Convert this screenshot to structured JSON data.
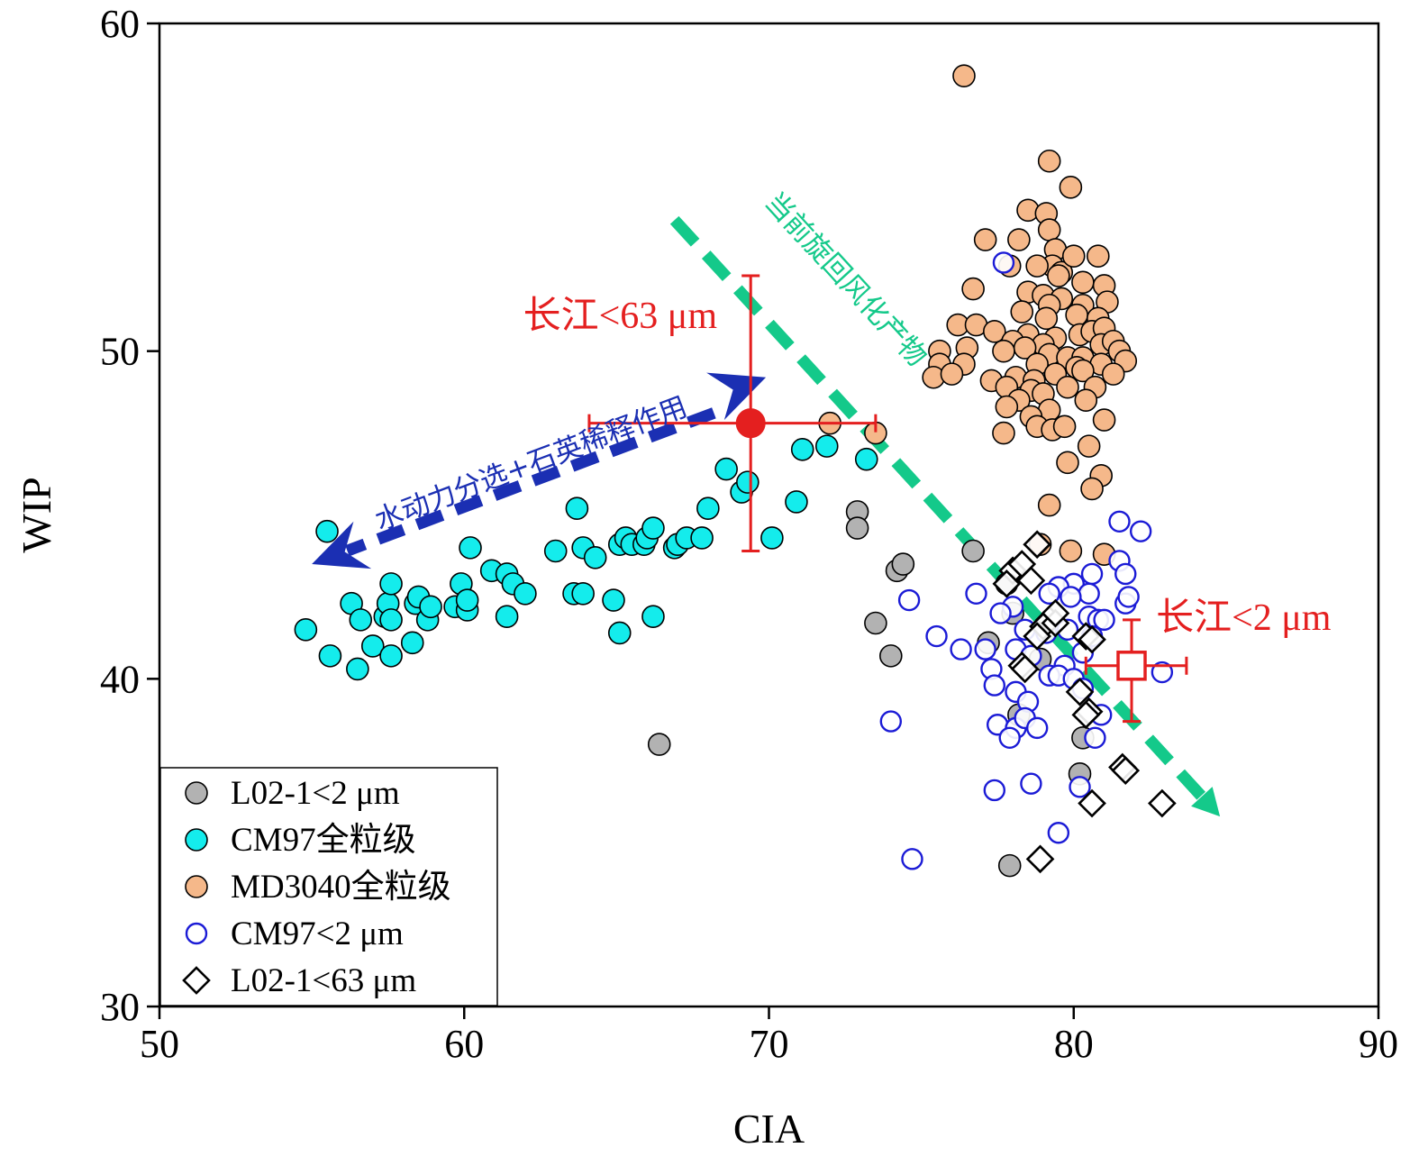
{
  "chart_data": {
    "type": "scatter",
    "xlabel": "CIA",
    "ylabel": "WIP",
    "xlim": [
      50,
      90
    ],
    "ylim": [
      30,
      60
    ],
    "xticks": [
      "50",
      "60",
      "70",
      "80",
      "90"
    ],
    "yticks": [
      "30",
      "40",
      "50",
      "60"
    ],
    "grid": false,
    "legend_position": "bottom-left",
    "series": [
      {
        "name": "L02-1<2 μm",
        "marker": "filled-circle",
        "color": "#b2b2b2",
        "points": [
          [
            66.4,
            38
          ],
          [
            72.9,
            45.1
          ],
          [
            72.9,
            44.6
          ],
          [
            73.5,
            41.7
          ],
          [
            74,
            40.7
          ],
          [
            74.2,
            43.3
          ],
          [
            74.4,
            43.5
          ],
          [
            76.7,
            43.9
          ],
          [
            77.2,
            41.1
          ],
          [
            77.8,
            42.9
          ],
          [
            78.0,
            42.0
          ],
          [
            78.2,
            38.9
          ],
          [
            78.9,
            40.6
          ],
          [
            80.3,
            38.2
          ],
          [
            80.2,
            37.1
          ],
          [
            77.9,
            34.3
          ]
        ]
      },
      {
        "name": "CM97全粒级",
        "marker": "filled-circle",
        "color": "#14ecec",
        "points": [
          [
            54.8,
            41.5
          ],
          [
            55.5,
            44.5
          ],
          [
            55.6,
            40.7
          ],
          [
            56.3,
            42.3
          ],
          [
            56.5,
            40.3
          ],
          [
            56.6,
            41.8
          ],
          [
            57.0,
            41.0
          ],
          [
            57.4,
            41.9
          ],
          [
            57.5,
            42.3
          ],
          [
            57.6,
            40.7
          ],
          [
            57.6,
            41.8
          ],
          [
            57.6,
            42.9
          ],
          [
            58.3,
            41.1
          ],
          [
            58.4,
            42.3
          ],
          [
            58.5,
            42.5
          ],
          [
            58.8,
            41.8
          ],
          [
            58.9,
            42.2
          ],
          [
            59.7,
            42.2
          ],
          [
            59.9,
            42.9
          ],
          [
            60.1,
            42.1
          ],
          [
            60.1,
            42.4
          ],
          [
            60.2,
            44
          ],
          [
            60.9,
            43.3
          ],
          [
            61.4,
            43.2
          ],
          [
            61.4,
            41.9
          ],
          [
            61.6,
            42.9
          ],
          [
            62.0,
            42.6
          ],
          [
            63.0,
            43.9
          ],
          [
            63.6,
            42.6
          ],
          [
            63.7,
            45.2
          ],
          [
            63.9,
            44
          ],
          [
            63.9,
            42.6
          ],
          [
            64.3,
            43.7
          ],
          [
            64.9,
            42.4
          ],
          [
            65.1,
            41.4
          ],
          [
            65.1,
            44.1
          ],
          [
            65.3,
            44.3
          ],
          [
            65.5,
            44.1
          ],
          [
            65.9,
            44.1
          ],
          [
            66.0,
            44.3
          ],
          [
            66.2,
            44.6
          ],
          [
            66.2,
            41.9
          ],
          [
            66.9,
            44.0
          ],
          [
            67.0,
            44.1
          ],
          [
            67.3,
            44.3
          ],
          [
            67.8,
            44.3
          ],
          [
            68.0,
            45.2
          ],
          [
            68.6,
            46.4
          ],
          [
            69.1,
            45.7
          ],
          [
            69.3,
            46.0
          ],
          [
            70.1,
            44.3
          ],
          [
            70.9,
            45.4
          ],
          [
            71.1,
            47.0
          ],
          [
            71.9,
            47.1
          ],
          [
            73.2,
            46.7
          ]
        ]
      },
      {
        "name": "MD3040全粒级",
        "marker": "filled-circle",
        "color": "#f5b88a",
        "points": [
          [
            72.0,
            47.8
          ],
          [
            73.5,
            47.5
          ],
          [
            76.4,
            58.4
          ],
          [
            79.2,
            55.8
          ],
          [
            79.9,
            55.0
          ],
          [
            78.5,
            54.3
          ],
          [
            79.1,
            54.2
          ],
          [
            79.2,
            53.7
          ],
          [
            79.4,
            53.1
          ],
          [
            77.1,
            53.4
          ],
          [
            78.2,
            53.4
          ],
          [
            79.3,
            52.6
          ],
          [
            79.6,
            52.4
          ],
          [
            80.0,
            52.9
          ],
          [
            80.8,
            52.9
          ],
          [
            77.9,
            52.6
          ],
          [
            78.8,
            52.6
          ],
          [
            79.5,
            52.3
          ],
          [
            80.3,
            52.1
          ],
          [
            81.0,
            52.0
          ],
          [
            76.7,
            51.9
          ],
          [
            78.5,
            51.8
          ],
          [
            79.0,
            51.7
          ],
          [
            79.6,
            51.6
          ],
          [
            80.3,
            51.4
          ],
          [
            81.1,
            51.5
          ],
          [
            79.2,
            51.4
          ],
          [
            78.3,
            51.2
          ],
          [
            80.1,
            51.1
          ],
          [
            80.8,
            51.0
          ],
          [
            79.1,
            51.0
          ],
          [
            76.2,
            50.8
          ],
          [
            76.8,
            50.8
          ],
          [
            77.4,
            50.6
          ],
          [
            78.5,
            50.5
          ],
          [
            78.0,
            50.3
          ],
          [
            79.4,
            50.4
          ],
          [
            80.2,
            50.5
          ],
          [
            80.6,
            50.6
          ],
          [
            81.0,
            50.7
          ],
          [
            79.0,
            50.2
          ],
          [
            78.4,
            50.1
          ],
          [
            80.9,
            50.2
          ],
          [
            81.3,
            50.3
          ],
          [
            75.6,
            50.0
          ],
          [
            76.5,
            50.1
          ],
          [
            77.7,
            50.0
          ],
          [
            79.2,
            49.9
          ],
          [
            79.8,
            49.8
          ],
          [
            80.3,
            49.8
          ],
          [
            81.5,
            50.0
          ],
          [
            75.6,
            49.6
          ],
          [
            76.4,
            49.6
          ],
          [
            78.8,
            49.6
          ],
          [
            80.1,
            49.5
          ],
          [
            80.9,
            49.6
          ],
          [
            81.7,
            49.7
          ],
          [
            75.4,
            49.2
          ],
          [
            76.0,
            49.3
          ],
          [
            77.3,
            49.1
          ],
          [
            78.1,
            49.2
          ],
          [
            78.7,
            49.1
          ],
          [
            79.4,
            49.3
          ],
          [
            80.3,
            49.4
          ],
          [
            81.3,
            49.3
          ],
          [
            77.8,
            48.9
          ],
          [
            78.6,
            48.8
          ],
          [
            79.0,
            48.7
          ],
          [
            79.8,
            48.9
          ],
          [
            80.7,
            48.9
          ],
          [
            78.2,
            48.5
          ],
          [
            79.2,
            48.2
          ],
          [
            80.4,
            48.5
          ],
          [
            77.8,
            48.3
          ],
          [
            78.6,
            48.0
          ],
          [
            81.0,
            47.9
          ],
          [
            78.8,
            47.7
          ],
          [
            79.3,
            47.6
          ],
          [
            77.7,
            47.5
          ],
          [
            79.7,
            47.7
          ],
          [
            80.5,
            47.1
          ],
          [
            80.9,
            46.2
          ],
          [
            79.8,
            46.6
          ],
          [
            80.6,
            45.8
          ],
          [
            79.2,
            45.3
          ],
          [
            78.9,
            44.1
          ],
          [
            79.9,
            43.9
          ],
          [
            81.0,
            43.8
          ]
        ]
      },
      {
        "name": "CM97<2 μm",
        "marker": "open-circle",
        "color": "#1b1bd6",
        "points": [
          [
            77.7,
            52.7
          ],
          [
            81.5,
            44.8
          ],
          [
            82.2,
            44.5
          ],
          [
            81.5,
            43.6
          ],
          [
            80.6,
            43.2
          ],
          [
            81.7,
            43.2
          ],
          [
            80.0,
            42.9
          ],
          [
            79.5,
            42.8
          ],
          [
            79.2,
            42.6
          ],
          [
            80.5,
            42.6
          ],
          [
            76.8,
            42.6
          ],
          [
            74.6,
            42.4
          ],
          [
            81.7,
            42.3
          ],
          [
            81.8,
            42.5
          ],
          [
            79.9,
            42.5
          ],
          [
            78.0,
            42.2
          ],
          [
            77.6,
            42.0
          ],
          [
            80.5,
            41.9
          ],
          [
            80.8,
            41.8
          ],
          [
            81.0,
            41.8
          ],
          [
            78.4,
            41.5
          ],
          [
            79.8,
            41.5
          ],
          [
            79.1,
            41.4
          ],
          [
            80.6,
            41.3
          ],
          [
            75.5,
            41.3
          ],
          [
            76.3,
            40.9
          ],
          [
            77.1,
            40.9
          ],
          [
            78.1,
            40.9
          ],
          [
            78.6,
            40.7
          ],
          [
            80.3,
            40.8
          ],
          [
            79.7,
            40.4
          ],
          [
            77.3,
            40.3
          ],
          [
            79.2,
            40.1
          ],
          [
            79.5,
            40.1
          ],
          [
            80.0,
            40.0
          ],
          [
            82.9,
            40.2
          ],
          [
            77.4,
            39.8
          ],
          [
            78.1,
            39.6
          ],
          [
            78.5,
            39.3
          ],
          [
            80.3,
            39.7
          ],
          [
            74.0,
            38.7
          ],
          [
            77.5,
            38.6
          ],
          [
            78.1,
            38.5
          ],
          [
            78.4,
            38.8
          ],
          [
            78.8,
            38.5
          ],
          [
            80.9,
            38.9
          ],
          [
            80.7,
            38.2
          ],
          [
            77.9,
            38.2
          ],
          [
            77.4,
            36.6
          ],
          [
            78.6,
            36.8
          ],
          [
            80.2,
            36.7
          ],
          [
            74.7,
            34.5
          ],
          [
            79.5,
            35.3
          ]
        ]
      },
      {
        "name": "L02-1<63 μm",
        "marker": "open-diamond",
        "color": "#000000",
        "points": [
          [
            78.0,
            43.3
          ],
          [
            78.3,
            43.5
          ],
          [
            78.6,
            43.0
          ],
          [
            77.8,
            42.9
          ],
          [
            78.8,
            44.1
          ],
          [
            79.2,
            41.8
          ],
          [
            79.0,
            41.6
          ],
          [
            79.4,
            41.7
          ],
          [
            78.8,
            41.3
          ],
          [
            79.4,
            42.0
          ],
          [
            80.4,
            41.3
          ],
          [
            80.6,
            41.2
          ],
          [
            78.3,
            40.4
          ],
          [
            78.4,
            40.3
          ],
          [
            80.2,
            39.6
          ],
          [
            80.5,
            39.0
          ],
          [
            80.4,
            38.9
          ],
          [
            81.6,
            37.3
          ],
          [
            81.7,
            37.2
          ],
          [
            80.6,
            36.2
          ],
          [
            82.9,
            36.2
          ],
          [
            78.9,
            34.5
          ]
        ]
      }
    ],
    "error_bars": [
      {
        "label": "长江<63 μm",
        "x": 69.4,
        "y": 47.8,
        "x_range": [
          64.1,
          73.5
        ],
        "y_range": [
          43.9,
          52.3
        ],
        "marker": "filled-circle",
        "color": "#e41f1f"
      },
      {
        "label": "长江<2 μm",
        "x": 81.9,
        "y": 40.4,
        "x_range": [
          80.4,
          83.7
        ],
        "y_range": [
          38.7,
          41.8
        ],
        "marker": "open-square",
        "color": "#e41f1f"
      }
    ],
    "trend_arrows": [
      {
        "label": "水动力分选+石英稀释作用",
        "from": [
          69.3,
          48.5
        ],
        "to": [
          55.0,
          43.5
        ],
        "color": "#1b2fb3"
      },
      {
        "label": "当前旋回风化产物",
        "from": [
          66.9,
          54.0
        ],
        "to": [
          84.8,
          35.8
        ],
        "color": "#14c98a"
      }
    ]
  }
}
